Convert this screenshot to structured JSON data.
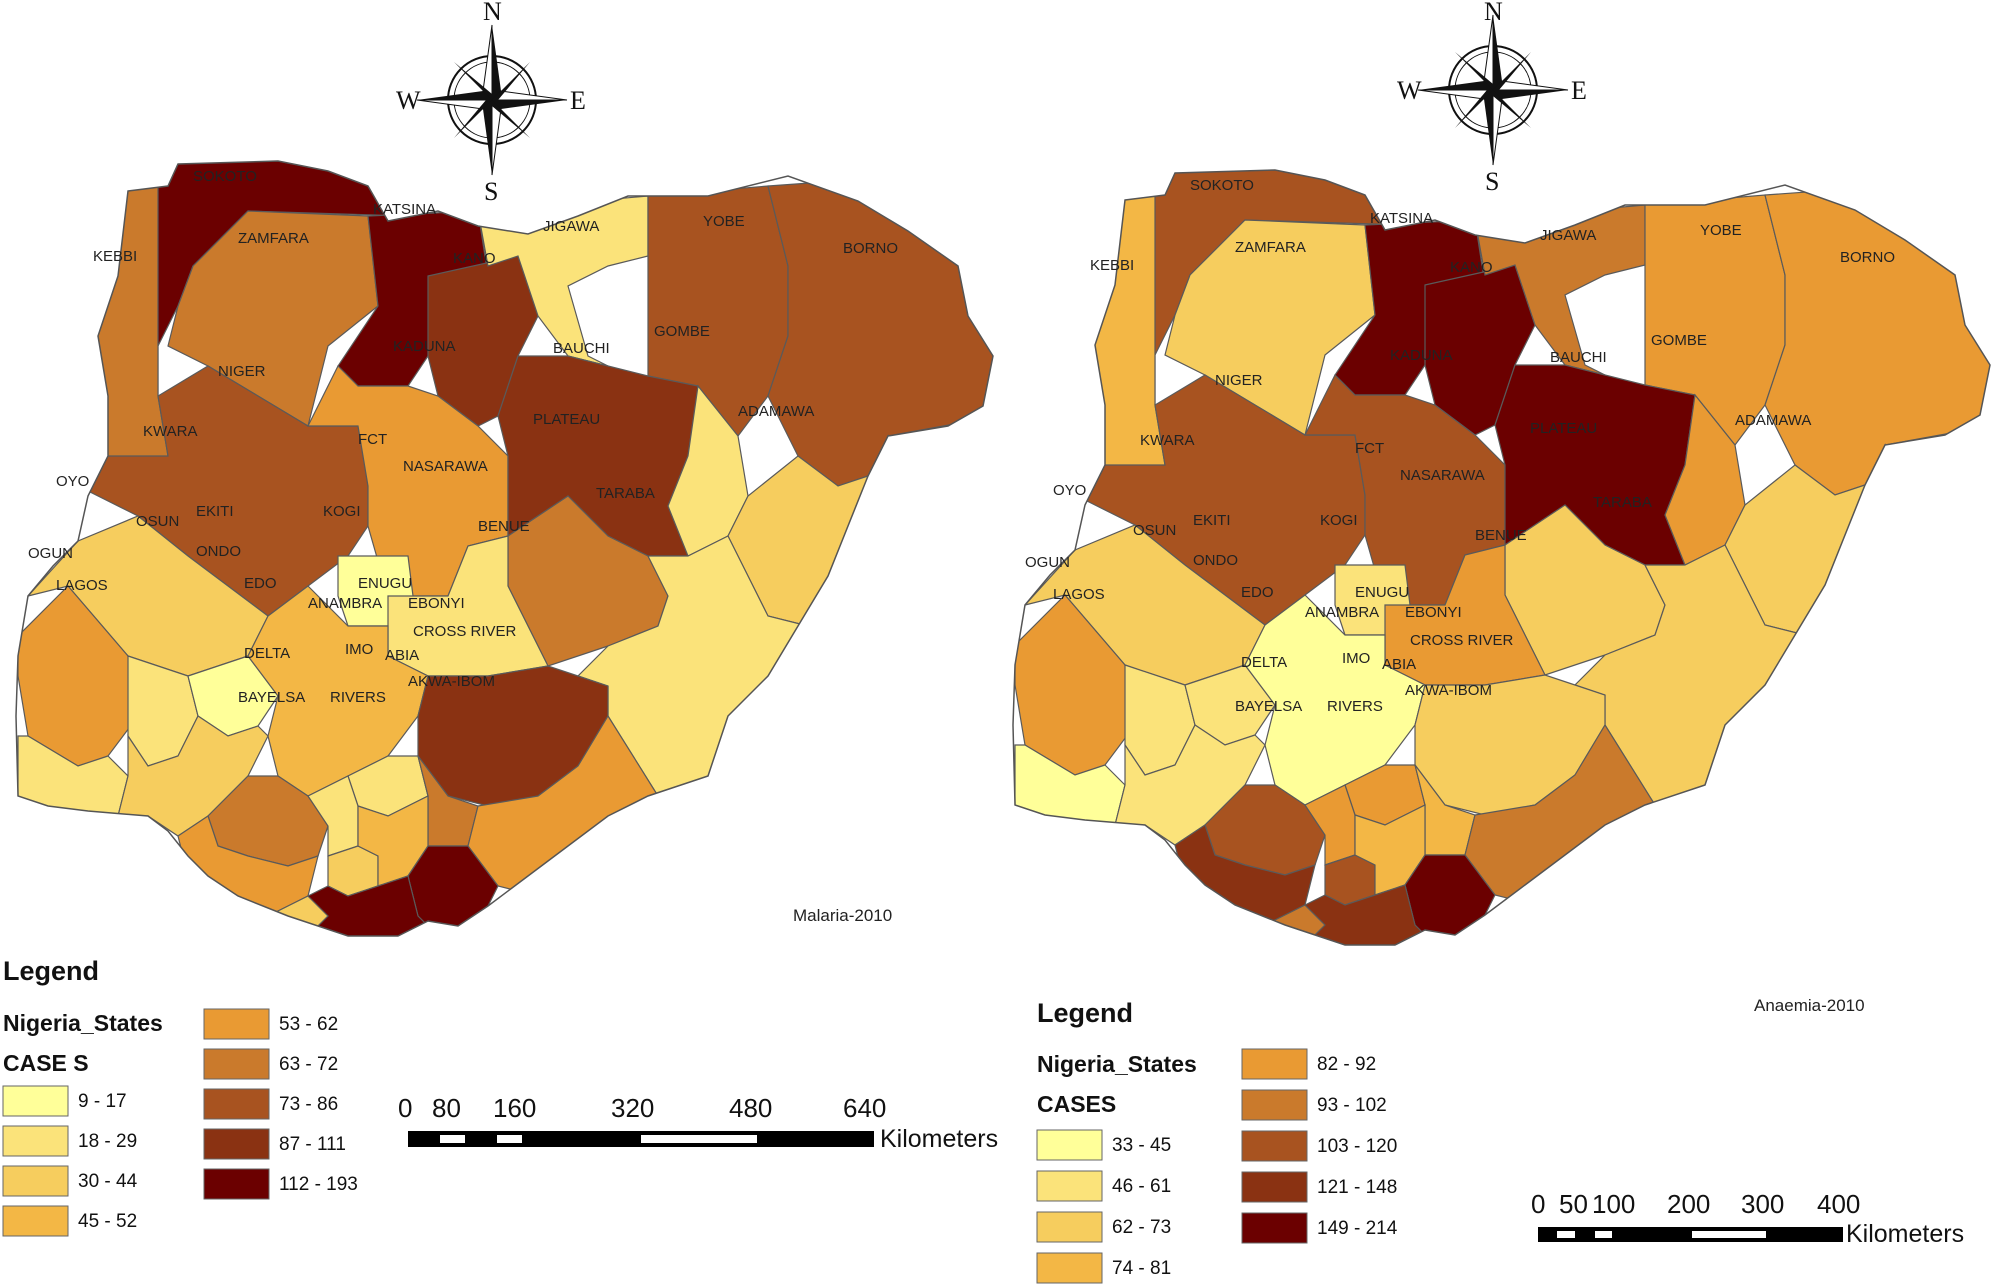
{
  "compass": {
    "north": "N",
    "south": "S",
    "east": "E",
    "west": "W"
  },
  "maps": [
    {
      "id": "malaria",
      "title": "Malaria-2010",
      "legend": {
        "title": "Legend",
        "layer": "Nigeria_States",
        "field": "CASE S",
        "classes": [
          {
            "label": "9 - 17",
            "color": "#ffff99"
          },
          {
            "label": "18 - 29",
            "color": "#fbe37a"
          },
          {
            "label": "30 - 44",
            "color": "#f6cd5e"
          },
          {
            "label": "45 - 52",
            "color": "#f3b745"
          },
          {
            "label": "53 - 62",
            "color": "#e99a33"
          },
          {
            "label": "63 - 72",
            "color": "#ca7a2c"
          },
          {
            "label": "73 - 86",
            "color": "#a85320"
          },
          {
            "label": "87 - 111",
            "color": "#8a3212"
          },
          {
            "label": "112 - 193",
            "color": "#6b0000"
          }
        ]
      },
      "scale": {
        "ticks": [
          "0",
          "80",
          "160",
          "320",
          "480",
          "640"
        ],
        "unit": "Kilometers"
      },
      "states": [
        {
          "name": "SOKOTO",
          "cls": 8
        },
        {
          "name": "KEBBI",
          "cls": 5
        },
        {
          "name": "ZAMFARA",
          "cls": 5
        },
        {
          "name": "KATSINA",
          "cls": 8
        },
        {
          "name": "KANO",
          "cls": 7
        },
        {
          "name": "JIGAWA",
          "cls": 1
        },
        {
          "name": "YOBE",
          "cls": 6
        },
        {
          "name": "BORNO",
          "cls": 6
        },
        {
          "name": "NIGER",
          "cls": 6
        },
        {
          "name": "KADUNA",
          "cls": 4
        },
        {
          "name": "BAUCHI",
          "cls": 7
        },
        {
          "name": "GOMBE",
          "cls": 1
        },
        {
          "name": "PLATEAU",
          "cls": 5
        },
        {
          "name": "ADAMAWA",
          "cls": 2
        },
        {
          "name": "KWARA",
          "cls": 2
        },
        {
          "name": "FCT",
          "cls": 0
        },
        {
          "name": "NASARAWA",
          "cls": 1
        },
        {
          "name": "TARABA",
          "cls": 1
        },
        {
          "name": "OYO",
          "cls": 4
        },
        {
          "name": "OSUN",
          "cls": 1
        },
        {
          "name": "EKITI",
          "cls": 0
        },
        {
          "name": "KOGI",
          "cls": 3
        },
        {
          "name": "BENUE",
          "cls": 7
        },
        {
          "name": "OGUN",
          "cls": 1
        },
        {
          "name": "ONDO",
          "cls": 2
        },
        {
          "name": "LAGOS",
          "cls": 1
        },
        {
          "name": "EDO",
          "cls": 5
        },
        {
          "name": "ENUGU",
          "cls": 1
        },
        {
          "name": "ANAMBRA",
          "cls": 1
        },
        {
          "name": "EBONYI",
          "cls": 5
        },
        {
          "name": "DELTA",
          "cls": 4
        },
        {
          "name": "CROSS RIVER",
          "cls": 4
        },
        {
          "name": "IMO",
          "cls": 2
        },
        {
          "name": "ABIA",
          "cls": 3
        },
        {
          "name": "AKWA-IBOM",
          "cls": 8
        },
        {
          "name": "BAYELSA",
          "cls": 2
        },
        {
          "name": "RIVERS",
          "cls": 8
        }
      ]
    },
    {
      "id": "anaemia",
      "title": "Anaemia-2010",
      "legend": {
        "title": "Legend",
        "layer": "Nigeria_States",
        "field": "CASES",
        "classes": [
          {
            "label": "33 - 45",
            "color": "#ffff99"
          },
          {
            "label": "46 - 61",
            "color": "#fbe37a"
          },
          {
            "label": "62 - 73",
            "color": "#f6cd5e"
          },
          {
            "label": "74 - 81",
            "color": "#f3b745"
          },
          {
            "label": "82 - 92",
            "color": "#e99a33"
          },
          {
            "label": "93 - 102",
            "color": "#ca7a2c"
          },
          {
            "label": "103 - 120",
            "color": "#a85320"
          },
          {
            "label": "121 - 148",
            "color": "#8a3212"
          },
          {
            "label": "149 - 214",
            "color": "#6b0000"
          }
        ]
      },
      "scale": {
        "ticks": [
          "0",
          "50",
          "100",
          "200",
          "300",
          "400"
        ],
        "unit": "Kilometers"
      },
      "states": [
        {
          "name": "SOKOTO",
          "cls": 6
        },
        {
          "name": "KEBBI",
          "cls": 3
        },
        {
          "name": "ZAMFARA",
          "cls": 2
        },
        {
          "name": "KATSINA",
          "cls": 8
        },
        {
          "name": "KANO",
          "cls": 8
        },
        {
          "name": "JIGAWA",
          "cls": 5
        },
        {
          "name": "YOBE",
          "cls": 4
        },
        {
          "name": "BORNO",
          "cls": 4
        },
        {
          "name": "NIGER",
          "cls": 6
        },
        {
          "name": "KADUNA",
          "cls": 6
        },
        {
          "name": "BAUCHI",
          "cls": 8
        },
        {
          "name": "GOMBE",
          "cls": 4
        },
        {
          "name": "PLATEAU",
          "cls": 2
        },
        {
          "name": "ADAMAWA",
          "cls": 2
        },
        {
          "name": "KWARA",
          "cls": 2
        },
        {
          "name": "FCT",
          "cls": 1
        },
        {
          "name": "NASARAWA",
          "cls": 4
        },
        {
          "name": "TARABA",
          "cls": 2
        },
        {
          "name": "OYO",
          "cls": 4
        },
        {
          "name": "OSUN",
          "cls": 1
        },
        {
          "name": "EKITI",
          "cls": 1
        },
        {
          "name": "KOGI",
          "cls": 0
        },
        {
          "name": "BENUE",
          "cls": 2
        },
        {
          "name": "OGUN",
          "cls": 0
        },
        {
          "name": "ONDO",
          "cls": 1
        },
        {
          "name": "LAGOS",
          "cls": 0
        },
        {
          "name": "EDO",
          "cls": 6
        },
        {
          "name": "ENUGU",
          "cls": 4
        },
        {
          "name": "ANAMBRA",
          "cls": 4
        },
        {
          "name": "EBONYI",
          "cls": 3
        },
        {
          "name": "DELTA",
          "cls": 7
        },
        {
          "name": "CROSS RIVER",
          "cls": 5
        },
        {
          "name": "IMO",
          "cls": 6
        },
        {
          "name": "ABIA",
          "cls": 3
        },
        {
          "name": "AKWA-IBOM",
          "cls": 8
        },
        {
          "name": "BAYELSA",
          "cls": 5
        },
        {
          "name": "RIVERS",
          "cls": 7
        }
      ]
    }
  ]
}
